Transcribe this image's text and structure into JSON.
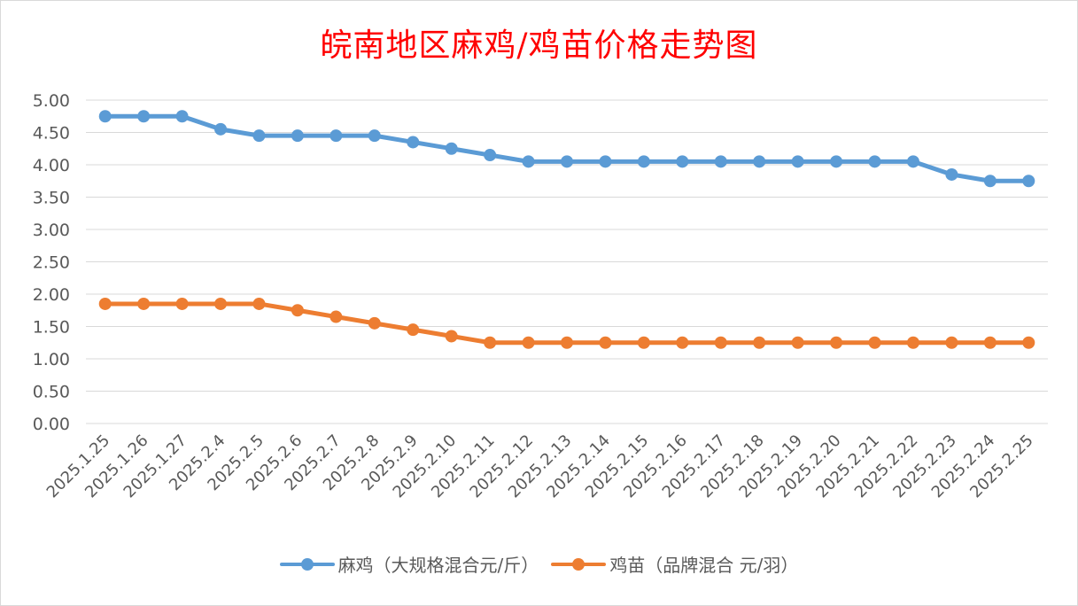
{
  "chart_data": {
    "type": "line",
    "title": "皖南地区麻鸡/鸡苗价格走势图",
    "categories": [
      "2025.1.25",
      "2025.1.26",
      "2025.1.27",
      "2025.2.4",
      "2025.2.5",
      "2025.2.6",
      "2025.2.7",
      "2025.2.8",
      "2025.2.9",
      "2025.2.10",
      "2025.2.11",
      "2025.2.12",
      "2025.2.13",
      "2025.2.14",
      "2025.2.15",
      "2025.2.16",
      "2025.2.17",
      "2025.2.18",
      "2025.2.19",
      "2025.2.20",
      "2025.2.21",
      "2025.2.22",
      "2025.2.23",
      "2025.2.24",
      "2025.2.25"
    ],
    "series": [
      {
        "name": "麻鸡（大规格混合元/斤）",
        "color": "#5b9bd5",
        "values": [
          4.75,
          4.75,
          4.75,
          4.55,
          4.45,
          4.45,
          4.45,
          4.45,
          4.35,
          4.25,
          4.15,
          4.05,
          4.05,
          4.05,
          4.05,
          4.05,
          4.05,
          4.05,
          4.05,
          4.05,
          4.05,
          4.05,
          3.85,
          3.75,
          3.75
        ]
      },
      {
        "name": "鸡苗（品牌混合 元/羽）",
        "color": "#ed7d31",
        "values": [
          1.85,
          1.85,
          1.85,
          1.85,
          1.85,
          1.75,
          1.65,
          1.55,
          1.45,
          1.35,
          1.25,
          1.25,
          1.25,
          1.25,
          1.25,
          1.25,
          1.25,
          1.25,
          1.25,
          1.25,
          1.25,
          1.25,
          1.25,
          1.25,
          1.25
        ]
      }
    ],
    "ylim": [
      0,
      5
    ],
    "yticks": [
      "0.00",
      "0.50",
      "1.00",
      "1.50",
      "2.00",
      "2.50",
      "3.00",
      "3.50",
      "4.00",
      "4.50",
      "5.00"
    ],
    "grid": true,
    "legend_position": "bottom"
  }
}
